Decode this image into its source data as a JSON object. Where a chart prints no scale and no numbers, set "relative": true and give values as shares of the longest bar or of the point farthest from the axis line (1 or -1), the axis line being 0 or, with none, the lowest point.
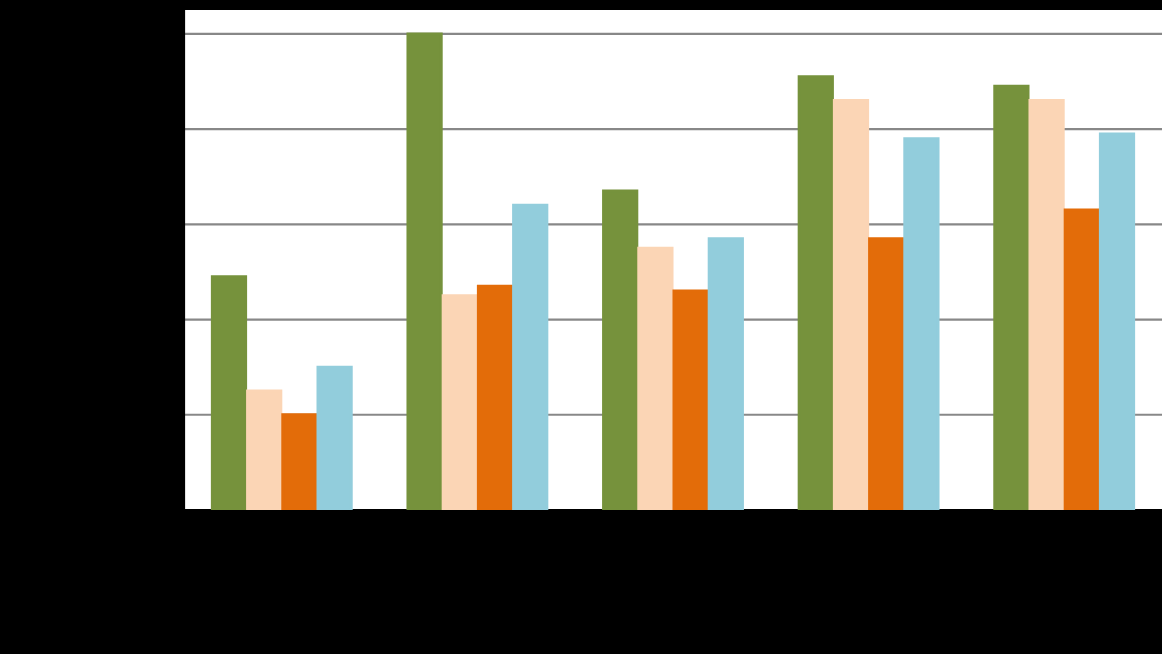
{
  "chart_data": {
    "type": "bar",
    "relative": true,
    "categories": [
      null,
      null,
      null,
      null,
      null
    ],
    "grid": "y",
    "series": [
      {
        "color": "#76923c",
        "values": [
          0.49,
          1,
          0.67,
          0.91,
          0.89
        ]
      },
      {
        "color": "#fbd5b5",
        "values": [
          0.25,
          0.45,
          0.55,
          0.86,
          0.86
        ]
      },
      {
        "color": "#e36c09",
        "values": [
          0.2,
          0.47,
          0.46,
          0.57,
          0.63
        ]
      },
      {
        "color": "#92cddc",
        "values": [
          0.3,
          0.64,
          0.57,
          0.78,
          0.79
        ]
      }
    ]
  }
}
